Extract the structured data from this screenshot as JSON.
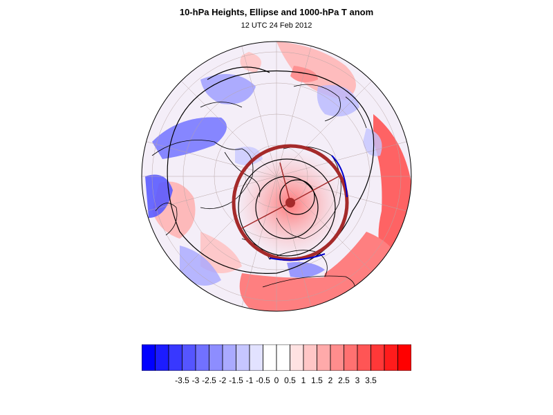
{
  "header": {
    "title": "10-hPa Heights, Ellipse and 1000-hPa T anom",
    "subtitle": "12 UTC 24 Feb 2012"
  },
  "map": {
    "projection": "polar-stereographic-north",
    "field": "1000-hPa T anom",
    "contour_overlay": "10-hPa Heights",
    "ellipse_color": "#a52a2a",
    "land_outline_color": "#000000"
  },
  "colorbar": {
    "labels": [
      "-3.5",
      "-3",
      "-2.5",
      "-2",
      "-1.5",
      "-1",
      "-0.5",
      "0",
      "0.5",
      "1",
      "1.5",
      "2",
      "2.5",
      "3",
      "3.5"
    ],
    "colors": [
      "#0000ff",
      "#1c1cff",
      "#3838ff",
      "#5555ff",
      "#7171ff",
      "#8d8dff",
      "#aaaaff",
      "#c6c6ff",
      "#e2e2ff",
      "#ffffff",
      "#ffffff",
      "#ffe2e2",
      "#ffc6c6",
      "#ffaaaa",
      "#ff8d8d",
      "#ff7171",
      "#ff5555",
      "#ff3838",
      "#ff1c1c",
      "#ff0000"
    ]
  }
}
